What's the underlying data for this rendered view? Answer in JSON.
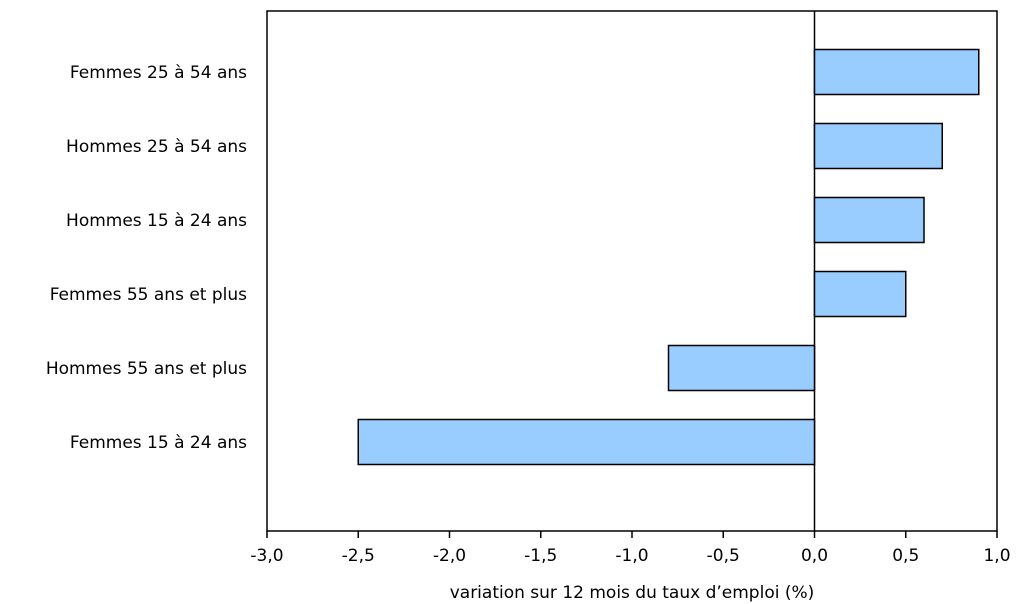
{
  "chart_data": {
    "type": "bar",
    "orientation": "horizontal",
    "categories": [
      "Femmes 25 à 54 ans",
      "Hommes 25 à 54 ans",
      "Hommes 15 à 24 ans",
      "Femmes 55 ans et plus",
      "Hommes 55 ans et plus",
      "Femmes 15 à 24 ans"
    ],
    "values": [
      0.9,
      0.7,
      0.6,
      0.5,
      -0.8,
      -2.5
    ],
    "xlabel": "variation sur 12 mois du taux d’emploi (%)",
    "ylabel": "",
    "xlim": [
      -3.0,
      1.0
    ],
    "xticks": [
      -3.0,
      -2.5,
      -2.0,
      -1.5,
      -1.0,
      -0.5,
      0.0,
      0.5,
      1.0
    ],
    "xtick_labels": [
      "-3,0",
      "-2,5",
      "-2,0",
      "-1,5",
      "-1,0",
      "-0,5",
      "0,0",
      "0,5",
      "1,0"
    ],
    "bar_color": "#99ccff",
    "grid": false,
    "legend": "none"
  }
}
